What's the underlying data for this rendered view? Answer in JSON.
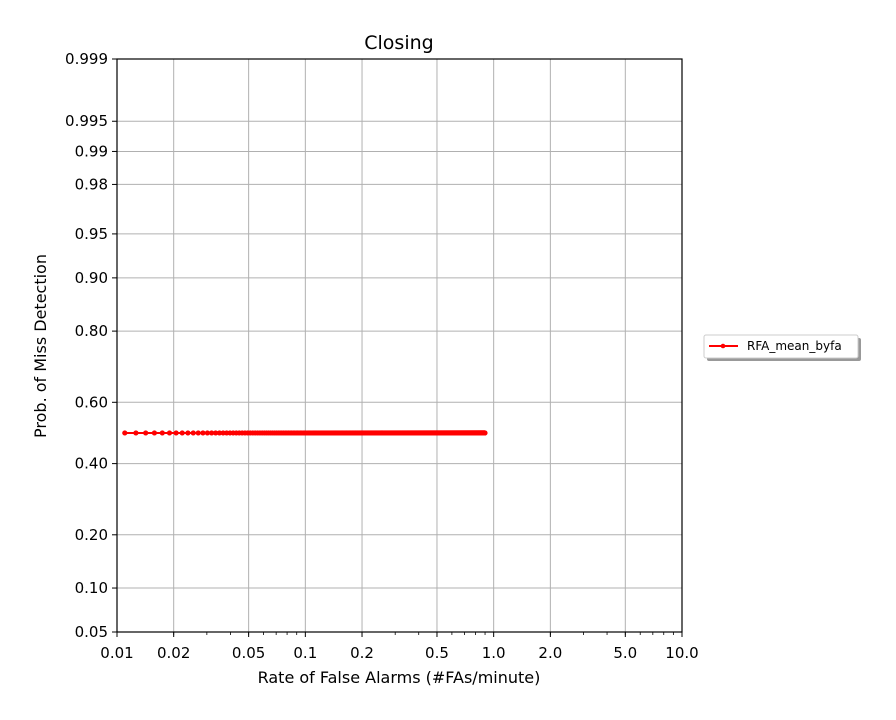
{
  "chart_data": {
    "type": "line",
    "title": "Closing",
    "xlabel": "Rate of False Alarms (#FAs/minute)",
    "ylabel": "Prob. of Miss Detection",
    "x_scale": "log",
    "y_scale": "normal-deviate",
    "xlim": [
      0.01,
      10.0
    ],
    "ylim": [
      0.05,
      0.999
    ],
    "x_ticks": [
      "0.01",
      "0.02",
      "0.05",
      "0.1",
      "0.2",
      "0.5",
      "1.0",
      "2.0",
      "5.0",
      "10.0"
    ],
    "y_ticks": [
      "0.05",
      "0.10",
      "0.20",
      "0.40",
      "0.60",
      "0.80",
      "0.90",
      "0.95",
      "0.98",
      "0.99",
      "0.995",
      "0.999"
    ],
    "grid": true,
    "legend_position": "outside-right",
    "series": [
      {
        "name": "RFA_mean_byfa",
        "color": "#ff0000",
        "marker": "dot",
        "x_start": 0.011,
        "x_end": 0.9,
        "x_step": 0.0016,
        "y_constant": 0.5
      }
    ]
  }
}
